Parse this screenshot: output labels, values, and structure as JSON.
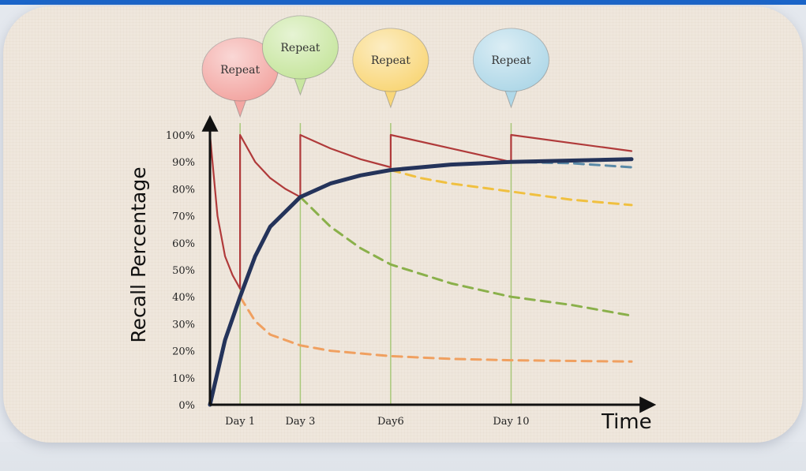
{
  "chart_data": {
    "type": "line",
    "title": "",
    "xlabel": "Time",
    "ylabel": "Recall Percentage",
    "y_ticks": [
      "0%",
      "10%",
      "20%",
      "30%",
      "40%",
      "50%",
      "60%",
      "70%",
      "80%",
      "90%",
      "100%"
    ],
    "x_ticks": [
      {
        "day": 1,
        "label": "Day 1"
      },
      {
        "day": 3,
        "label": "Day 3"
      },
      {
        "day": 6,
        "label": "Day6"
      },
      {
        "day": 10,
        "label": "Day 10"
      }
    ],
    "xlim": [
      0,
      14
    ],
    "ylim": [
      0,
      100
    ],
    "annotations": [
      {
        "label": "Repeat",
        "day": 1,
        "color": "#f3a7a3"
      },
      {
        "label": "Repeat",
        "day": 3,
        "color": "#c8e6a0"
      },
      {
        "label": "Repeat",
        "day": 6,
        "color": "#f9d77a"
      },
      {
        "label": "Repeat",
        "day": 10,
        "color": "#b0d8e8"
      }
    ],
    "series": [
      {
        "style": "forgetting",
        "color": "#b03a3a",
        "dashed": false,
        "x": [
          0,
          0.25,
          0.5,
          0.75,
          1,
          1,
          1.5,
          2,
          2.5,
          3,
          3,
          4,
          5,
          6,
          6,
          8,
          10,
          10,
          12,
          14
        ],
        "y": [
          100,
          70,
          55,
          48,
          43,
          100,
          90,
          84,
          80,
          77,
          100,
          95,
          91,
          88,
          100,
          95,
          90,
          100,
          97,
          94
        ]
      },
      {
        "style": "memory",
        "color": "#24335a",
        "dashed": false,
        "x": [
          0,
          0.5,
          1,
          1.5,
          2,
          3,
          4,
          5,
          6,
          8,
          10,
          12,
          14
        ],
        "y": [
          0,
          24,
          40,
          55,
          66,
          77,
          82,
          85,
          87,
          89,
          90,
          90.5,
          91
        ]
      },
      {
        "style": "decay-after-day1",
        "color": "#f0a060",
        "dashed": true,
        "x": [
          1,
          1.5,
          2,
          3,
          4,
          6,
          8,
          10,
          14
        ],
        "y": [
          40,
          31,
          26,
          22,
          20,
          18,
          17,
          16.5,
          16
        ]
      },
      {
        "style": "decay-after-day3",
        "color": "#8ab04a",
        "dashed": true,
        "x": [
          3,
          4,
          5,
          6,
          8,
          10,
          12,
          14
        ],
        "y": [
          77,
          66,
          58,
          52,
          45,
          40,
          37,
          33
        ]
      },
      {
        "style": "decay-after-day6",
        "color": "#f0c040",
        "dashed": true,
        "x": [
          6,
          7,
          8,
          10,
          12,
          14
        ],
        "y": [
          87,
          84,
          82,
          79,
          76,
          74
        ]
      },
      {
        "style": "decay-after-day10",
        "color": "#5a8aa8",
        "dashed": true,
        "x": [
          10,
          12,
          14
        ],
        "y": [
          90,
          89.5,
          88
        ]
      }
    ]
  }
}
